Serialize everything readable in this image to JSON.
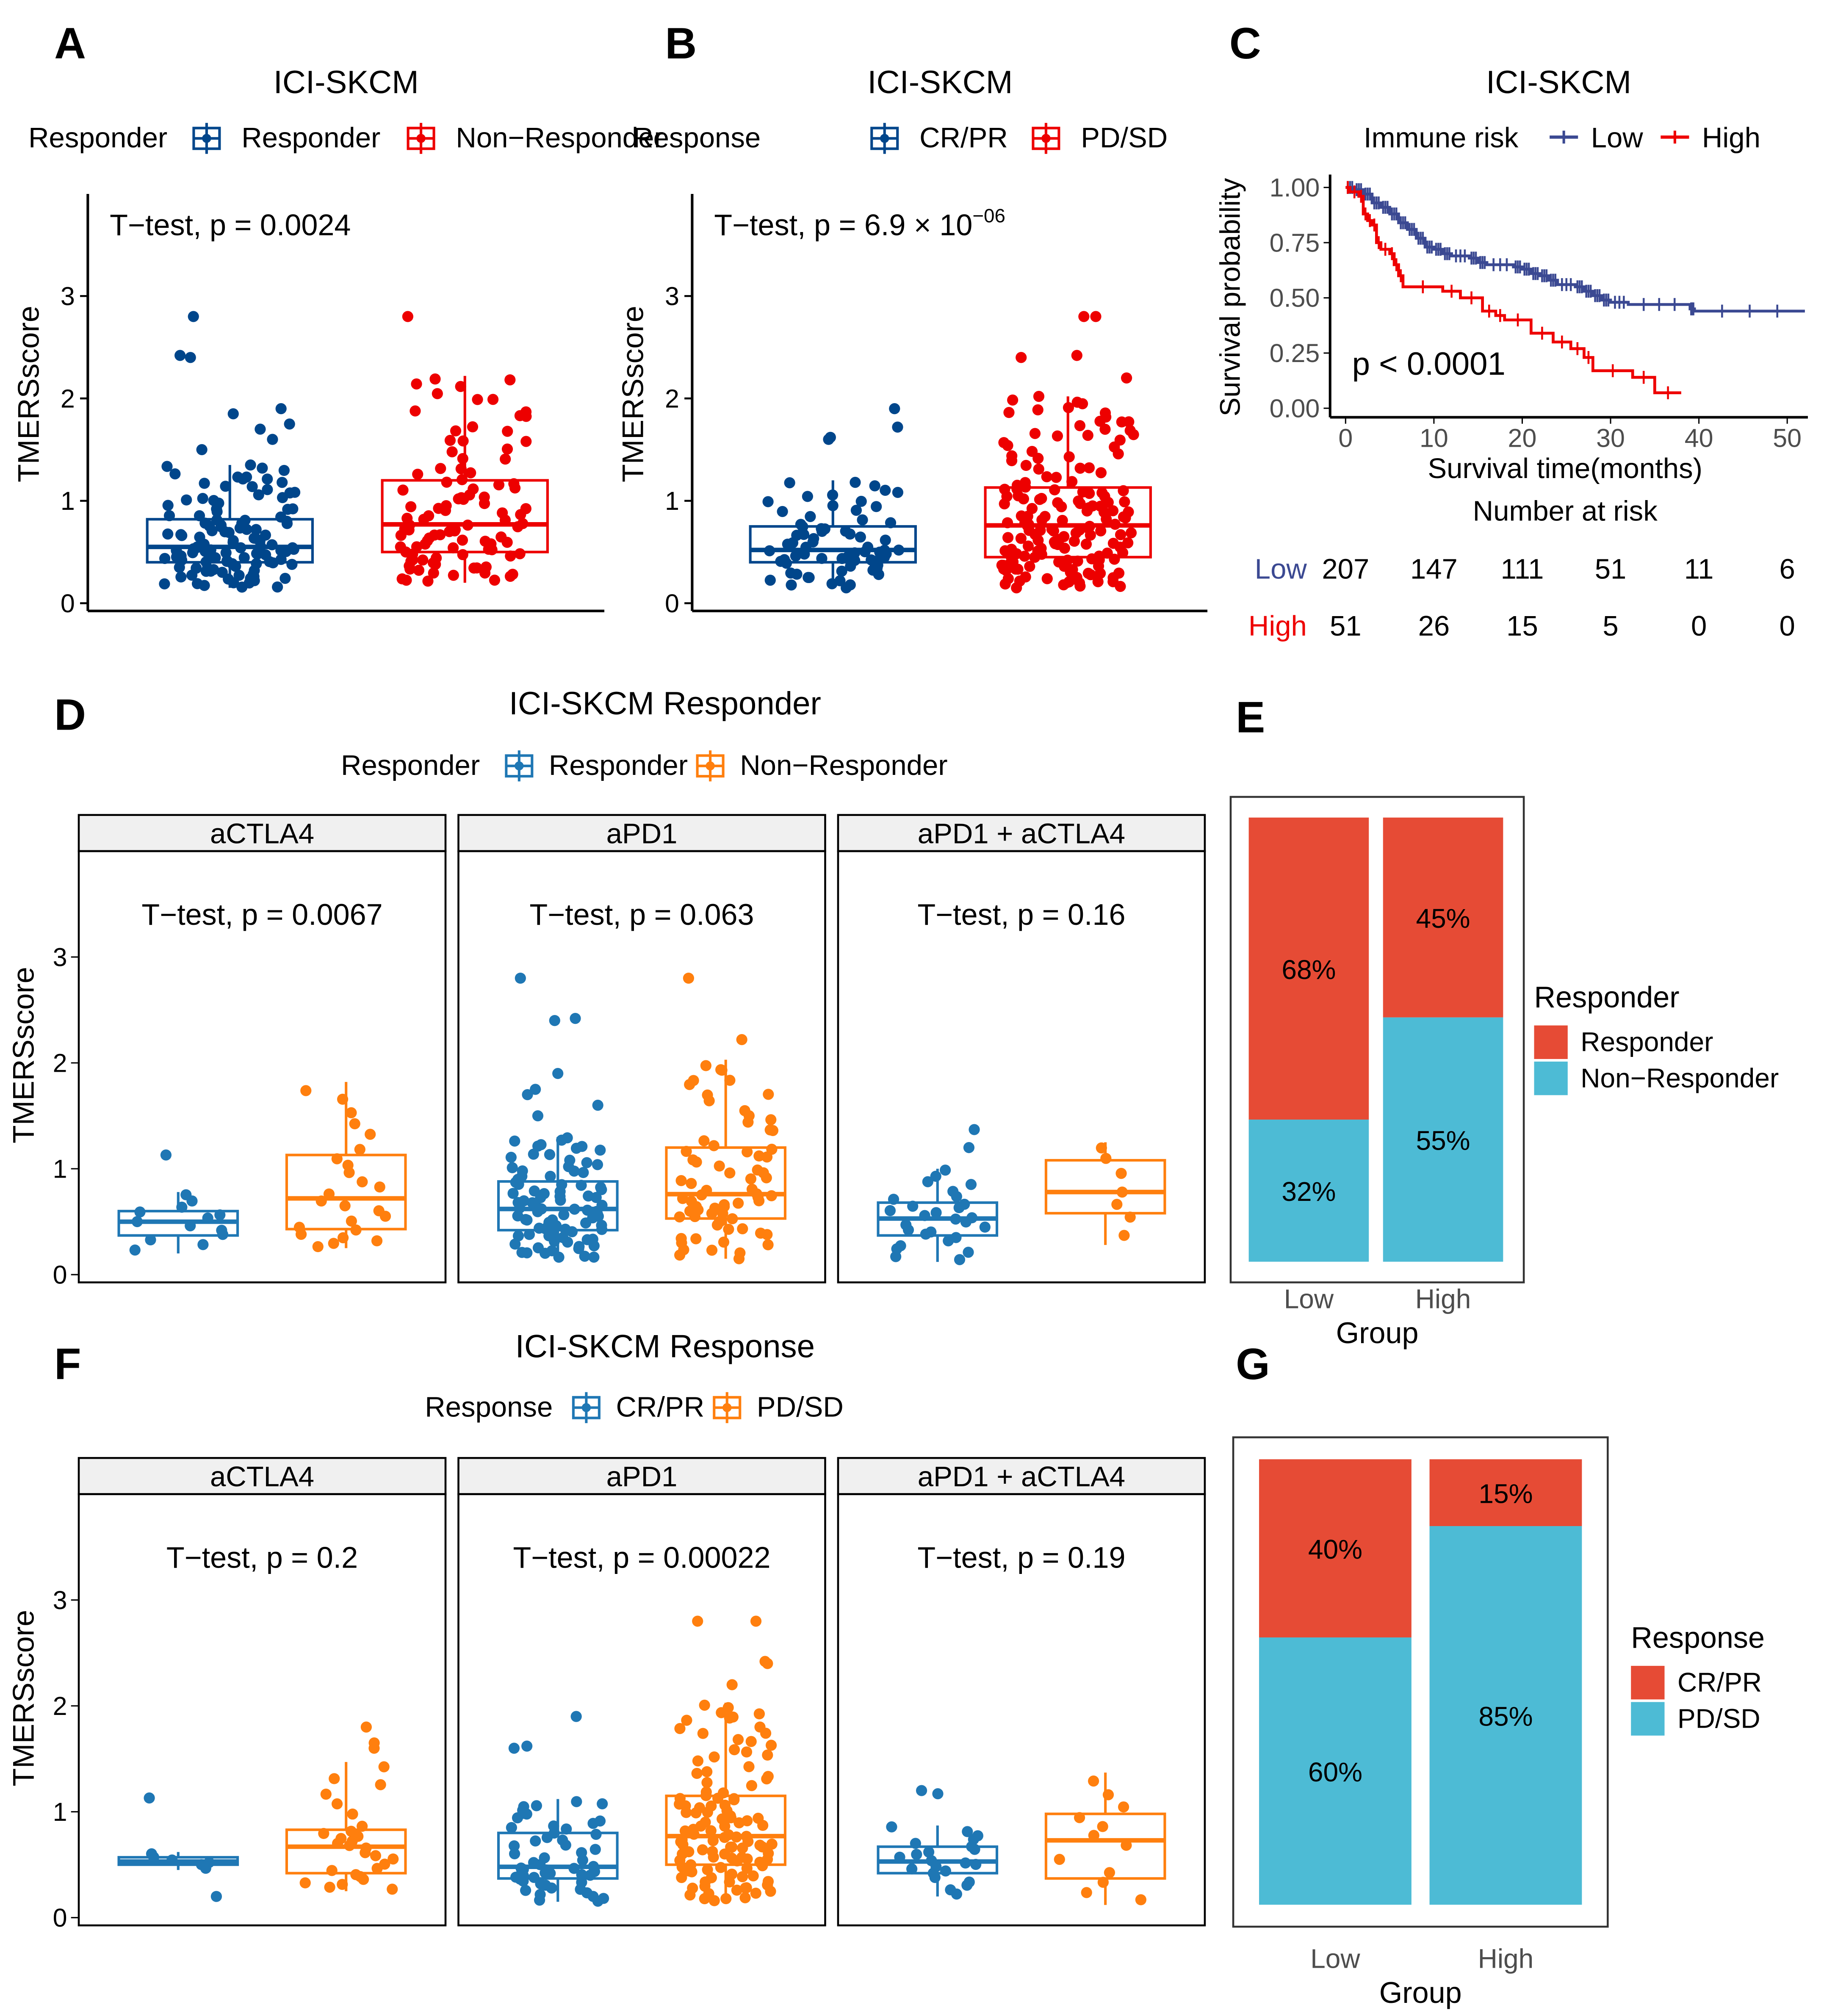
{
  "panel_labels": [
    "A",
    "B",
    "C",
    "D",
    "E",
    "F",
    "G"
  ],
  "chart_data": {
    "A": {
      "type": "box",
      "title": "ICI-SKCM",
      "legend_title": "Responder",
      "ylabel": "TMERSscore",
      "yticks": [
        "0",
        "1",
        "2",
        "3"
      ],
      "ylim": [
        0,
        4
      ],
      "test_label": "T−test, p = 0.0024",
      "groups": [
        {
          "name": "Responder",
          "color": "#00468B",
          "n": 120,
          "min": 0.15,
          "q1": 0.4,
          "median": 0.55,
          "q3": 0.82,
          "max": 1.35,
          "outliers": [
            1.5,
            1.6,
            1.7,
            1.75,
            1.85,
            1.9,
            2.4,
            2.42,
            2.8
          ]
        },
        {
          "name": "Non−Responder",
          "color": "#ED0000",
          "n": 100,
          "min": 0.2,
          "q1": 0.5,
          "median": 0.77,
          "q3": 1.2,
          "max": 2.22,
          "outliers": [
            2.8
          ]
        }
      ]
    },
    "B": {
      "type": "box",
      "title": "ICI-SKCM",
      "legend_title": "Response",
      "ylabel": "TMERSscore",
      "yticks": [
        "0",
        "1",
        "2",
        "3"
      ],
      "ylim": [
        0,
        4
      ],
      "test_label": "T−test, p = 6.9 × 10",
      "test_exponent": "−06",
      "groups": [
        {
          "name": "CR/PR",
          "color": "#00468B",
          "n": 70,
          "min": 0.15,
          "q1": 0.4,
          "median": 0.52,
          "q3": 0.75,
          "max": 1.2,
          "outliers": [
            1.6,
            1.62,
            1.72,
            1.9
          ]
        },
        {
          "name": "PD/SD",
          "color": "#ED0000",
          "n": 160,
          "min": 0.15,
          "q1": 0.45,
          "median": 0.76,
          "q3": 1.13,
          "max": 2.02,
          "outliers": [
            2.2,
            2.4,
            2.42,
            2.8,
            2.8
          ]
        }
      ]
    },
    "C": {
      "type": "line",
      "subtype": "kaplan-meier",
      "title": "ICI-SKCM",
      "legend_title": "Immune risk",
      "xlabel": "Survival time(months)",
      "ylabel": "Survival probability",
      "xticks": [
        "0",
        "10",
        "20",
        "30",
        "40",
        "50"
      ],
      "yticks": [
        "0.00",
        "0.25",
        "0.50",
        "0.75",
        "1.00"
      ],
      "xlim": [
        0,
        52
      ],
      "ylim": [
        0,
        1
      ],
      "p_text": "p < 0.0001",
      "series": [
        {
          "name": "Low",
          "color": "#3B4992",
          "points": [
            [
              0,
              1
            ],
            [
              1,
              0.99
            ],
            [
              2,
              0.97
            ],
            [
              3,
              0.93
            ],
            [
              4,
              0.91
            ],
            [
              5,
              0.88
            ],
            [
              6,
              0.84
            ],
            [
              7,
              0.81
            ],
            [
              8,
              0.77
            ],
            [
              9,
              0.73
            ],
            [
              10,
              0.72
            ],
            [
              11,
              0.7
            ],
            [
              12,
              0.69
            ],
            [
              14,
              0.68
            ],
            [
              15,
              0.66
            ],
            [
              16,
              0.65
            ],
            [
              19,
              0.64
            ],
            [
              20,
              0.63
            ],
            [
              21,
              0.61
            ],
            [
              22,
              0.6
            ],
            [
              23,
              0.58
            ],
            [
              24,
              0.56
            ],
            [
              26,
              0.55
            ],
            [
              27,
              0.53
            ],
            [
              28,
              0.51
            ],
            [
              29,
              0.49
            ],
            [
              30,
              0.48
            ],
            [
              32,
              0.47
            ],
            [
              39,
              0.45
            ],
            [
              39.5,
              0.44
            ],
            [
              52,
              0.44
            ]
          ]
        },
        {
          "name": "High",
          "color": "#EE0000",
          "points": [
            [
              0,
              1
            ],
            [
              0.5,
              0.98
            ],
            [
              1.5,
              0.96
            ],
            [
              2,
              0.88
            ],
            [
              2.5,
              0.85
            ],
            [
              3,
              0.83
            ],
            [
              3.5,
              0.75
            ],
            [
              4,
              0.72
            ],
            [
              5,
              0.7
            ],
            [
              5.5,
              0.65
            ],
            [
              6,
              0.6
            ],
            [
              6.5,
              0.55
            ],
            [
              11,
              0.53
            ],
            [
              13,
              0.5
            ],
            [
              15.5,
              0.44
            ],
            [
              17,
              0.42
            ],
            [
              18,
              0.4
            ],
            [
              21,
              0.34
            ],
            [
              23.5,
              0.3
            ],
            [
              25.5,
              0.27
            ],
            [
              27,
              0.23
            ],
            [
              28,
              0.17
            ],
            [
              32.5,
              0.14
            ],
            [
              35,
              0.07
            ],
            [
              38,
              0.07
            ]
          ]
        }
      ],
      "risk_table": {
        "title": "Number at risk",
        "times": [
          0,
          10,
          20,
          30,
          40,
          50
        ],
        "rows": [
          {
            "name": "Low",
            "color": "#3B4992",
            "values": [
              "207",
              "147",
              "111",
              "51",
              "11",
              "6"
            ]
          },
          {
            "name": "High",
            "color": "#EE0000",
            "values": [
              "51",
              "26",
              "15",
              "5",
              "0",
              "0"
            ]
          }
        ]
      }
    },
    "D": {
      "type": "box",
      "title": "ICI-SKCM Responder",
      "legend_title": "Responder",
      "ylabel": "TMERSscore",
      "yticks": [
        "0",
        "1",
        "2",
        "3"
      ],
      "ylim": [
        0,
        4
      ],
      "group_names": [
        "Responder",
        "Non−Responder"
      ],
      "colors": [
        "#1F77B4",
        "#FF7F0E"
      ],
      "facets": [
        {
          "name": "aCTLA4",
          "test_label": "T−test, p = 0.0067",
          "groups": [
            {
              "n": 13,
              "min": 0.2,
              "q1": 0.37,
              "median": 0.5,
              "q3": 0.6,
              "max": 0.78,
              "outliers": [
                1.13
              ]
            },
            {
              "n": 24,
              "min": 0.25,
              "q1": 0.43,
              "median": 0.72,
              "q3": 1.13,
              "max": 1.82,
              "outliers": []
            }
          ]
        },
        {
          "name": "aPD1",
          "test_label": "T−test, p = 0.063",
          "groups": [
            {
              "n": 90,
              "min": 0.15,
              "q1": 0.42,
              "median": 0.62,
              "q3": 0.88,
              "max": 1.3,
              "outliers": [
                1.5,
                1.6,
                1.7,
                1.75,
                1.9,
                2.4,
                2.42,
                2.8
              ]
            },
            {
              "n": 70,
              "min": 0.15,
              "q1": 0.53,
              "median": 0.76,
              "q3": 1.2,
              "max": 2.03,
              "outliers": [
                2.22,
                2.8
              ]
            }
          ]
        },
        {
          "name": "aPD1 + aCTLA4",
          "test_label": "T−test, p = 0.16",
          "groups": [
            {
              "n": 28,
              "min": 0.12,
              "q1": 0.37,
              "median": 0.53,
              "q3": 0.68,
              "max": 1.0,
              "outliers": [
                1.2,
                1.37
              ]
            },
            {
              "n": 7,
              "min": 0.28,
              "q1": 0.58,
              "median": 0.78,
              "q3": 1.08,
              "max": 1.25,
              "outliers": []
            }
          ]
        }
      ]
    },
    "E": {
      "type": "bar",
      "stacked": true,
      "xlabel": "Group",
      "legend_title": "Responder",
      "categories": [
        "Low",
        "High"
      ],
      "series": [
        {
          "name": "Responder",
          "color": "#E64B35",
          "values": [
            68,
            45
          ],
          "labels": [
            "68%",
            "45%"
          ]
        },
        {
          "name": "Non−Responder",
          "color": "#4DBBD5",
          "values": [
            32,
            55
          ],
          "labels": [
            "32%",
            "55%"
          ]
        }
      ]
    },
    "F": {
      "type": "box",
      "title": "ICI-SKCM Response",
      "legend_title": "Response",
      "ylabel": "TMERSscore",
      "yticks": [
        "0",
        "1",
        "2",
        "3"
      ],
      "ylim": [
        0,
        4
      ],
      "group_names": [
        "CR/PR",
        "PD/SD"
      ],
      "colors": [
        "#1F77B4",
        "#FF7F0E"
      ],
      "facets": [
        {
          "name": "aCTLA4",
          "test_label": "T−test, p = 0.2",
          "groups": [
            {
              "n": 6,
              "min": 0.45,
              "q1": 0.5,
              "median": 0.53,
              "q3": 0.57,
              "max": 0.62,
              "outliers": [
                0.2,
                1.13
              ]
            },
            {
              "n": 28,
              "min": 0.25,
              "q1": 0.42,
              "median": 0.67,
              "q3": 0.83,
              "max": 1.47,
              "outliers": [
                1.6,
                1.65,
                1.8
              ]
            }
          ]
        },
        {
          "name": "aPD1",
          "test_label": "T−test, p = 0.00022",
          "groups": [
            {
              "n": 55,
              "min": 0.15,
              "q1": 0.37,
              "median": 0.48,
              "q3": 0.8,
              "max": 1.12,
              "outliers": [
                1.6,
                1.62,
                1.9
              ]
            },
            {
              "n": 115,
              "min": 0.15,
              "q1": 0.5,
              "median": 0.77,
              "q3": 1.15,
              "max": 2.03,
              "outliers": [
                2.2,
                2.4,
                2.42,
                2.8,
                2.8
              ]
            }
          ]
        },
        {
          "name": "aPD1 + aCTLA4",
          "test_label": "T−test, p = 0.19",
          "groups": [
            {
              "n": 22,
              "min": 0.2,
              "q1": 0.42,
              "median": 0.53,
              "q3": 0.67,
              "max": 0.87,
              "outliers": [
                1.17,
                1.2
              ]
            },
            {
              "n": 12,
              "min": 0.12,
              "q1": 0.37,
              "median": 0.73,
              "q3": 0.98,
              "max": 1.37,
              "outliers": []
            }
          ]
        }
      ]
    },
    "G": {
      "type": "bar",
      "stacked": true,
      "xlabel": "Group",
      "legend_title": "Response",
      "categories": [
        "Low",
        "High"
      ],
      "series": [
        {
          "name": "CR/PR",
          "color": "#E64B35",
          "values": [
            40,
            15
          ],
          "labels": [
            "40%",
            "15%"
          ]
        },
        {
          "name": "PD/SD",
          "color": "#4DBBD5",
          "values": [
            60,
            85
          ],
          "labels": [
            "60%",
            "85%"
          ]
        }
      ]
    }
  }
}
